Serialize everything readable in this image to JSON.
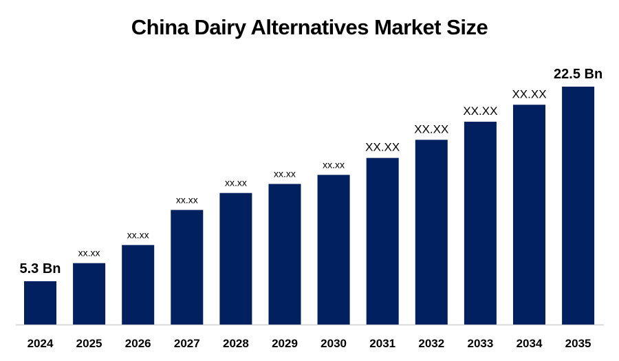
{
  "chart_data": {
    "type": "bar",
    "title": "China Dairy Alternatives Market Size",
    "xlabel": "",
    "ylabel": "",
    "categories": [
      "2024",
      "2025",
      "2026",
      "2027",
      "2028",
      "2029",
      "2030",
      "2031",
      "2032",
      "2033",
      "2034",
      "2035"
    ],
    "values": [
      5.3,
      6.9,
      8.5,
      11.6,
      13.1,
      13.9,
      14.7,
      16.2,
      17.8,
      19.4,
      20.9,
      22.5
    ],
    "data_labels": [
      "5.3 Bn",
      "xx.xx",
      "xx.xx",
      "xx.xx",
      "xx.xx",
      "xx.xx",
      "xx.xx",
      "XX.XX",
      "XX.XX",
      "XX.XX",
      "XX.XX",
      "22.5 Bn"
    ],
    "ylim": [
      1.5,
      22.5
    ],
    "grid": false,
    "legend": "none",
    "bar_color": "#002060",
    "axis_color": "#d9d9d9"
  }
}
